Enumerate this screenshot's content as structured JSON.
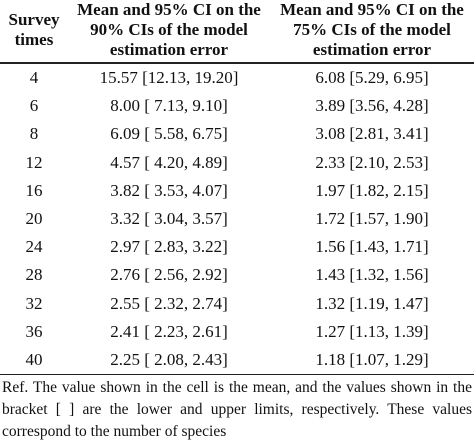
{
  "table": {
    "header": [
      "Survey times",
      "Mean and 95% CI on the 90% CIs of the model estimation error",
      "Mean and 95% CI on the 75% CIs of the model estimation error"
    ],
    "rows": [
      [
        "4",
        "15.57 [12.13, 19.20]",
        "6.08 [5.29, 6.95]"
      ],
      [
        "6",
        "8.00 [ 7.13, 9.10]",
        "3.89 [3.56, 4.28]"
      ],
      [
        "8",
        "6.09 [ 5.58, 6.75]",
        "3.08 [2.81, 3.41]"
      ],
      [
        "12",
        "4.57 [ 4.20, 4.89]",
        "2.33 [2.10, 2.53]"
      ],
      [
        "16",
        "3.82 [ 3.53, 4.07]",
        "1.97 [1.82, 2.15]"
      ],
      [
        "20",
        "3.32 [ 3.04, 3.57]",
        "1.72 [1.57, 1.90]"
      ],
      [
        "24",
        "2.97 [ 2.83, 3.22]",
        "1.56 [1.43, 1.71]"
      ],
      [
        "28",
        "2.76 [ 2.56, 2.92]",
        "1.43 [1.32, 1.56]"
      ],
      [
        "32",
        "2.55 [ 2.32, 2.74]",
        "1.32 [1.19, 1.47]"
      ],
      [
        "36",
        "2.41 [ 2.23, 2.61]",
        "1.27 [1.13, 1.39]"
      ],
      [
        "40",
        "2.25 [ 2.08, 2.43]",
        "1.18 [1.07, 1.29]"
      ]
    ],
    "note": "Ref. The value shown in the cell is the mean, and the values shown in the bracket [ ] are the lower and upper limits, respectively. These values correspond to the number of species"
  }
}
